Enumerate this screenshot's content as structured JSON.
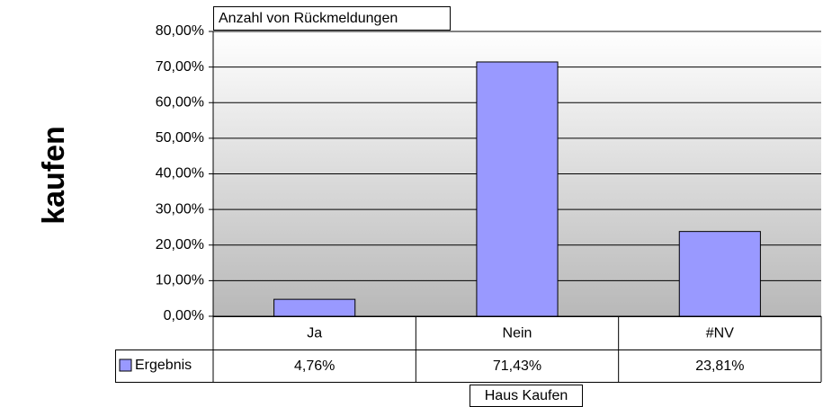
{
  "chart_data": {
    "type": "bar",
    "title": "Anzahl von Rückmeldungen",
    "x_label": "Haus Kaufen",
    "y_label": "kaufen",
    "categories": [
      "Ja",
      "Nein",
      "#NV"
    ],
    "series": [
      {
        "name": "Ergebnis",
        "color": "#9999ff",
        "values": [
          4.76,
          71.43,
          23.81
        ],
        "value_labels": [
          "4,76%",
          "71,43%",
          "23,81%"
        ]
      }
    ],
    "ylim": [
      0,
      80
    ],
    "yticks": [
      {
        "value": 0,
        "label": "0,00%"
      },
      {
        "value": 10,
        "label": "10,00%"
      },
      {
        "value": 20,
        "label": "20,00%"
      },
      {
        "value": 30,
        "label": "30,00%"
      },
      {
        "value": 40,
        "label": "40,00%"
      },
      {
        "value": 50,
        "label": "50,00%"
      },
      {
        "value": 60,
        "label": "60,00%"
      },
      {
        "value": 70,
        "label": "70,00%"
      },
      {
        "value": 80,
        "label": "80,00%"
      }
    ],
    "grid": true
  }
}
